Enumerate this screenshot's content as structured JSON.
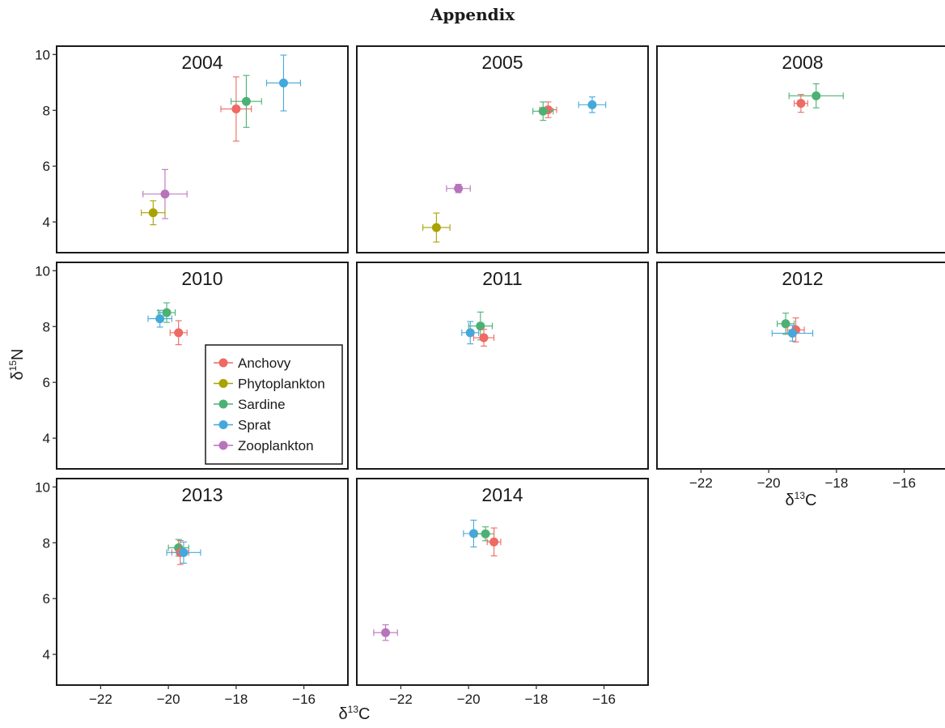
{
  "page": {
    "title": "Appendix"
  },
  "axes": {
    "xlabel_main": "δ",
    "xlabel_sup": "13",
    "xlabel_tail": "C",
    "ylabel_main": "δ",
    "ylabel_sup": "15",
    "ylabel_tail": "N"
  },
  "colors": {
    "Anchovy": "#ee6a62",
    "Phytoplankton": "#a8a300",
    "Sardine": "#4cb174",
    "Sprat": "#44a8dc",
    "Zooplankton": "#b774bb"
  },
  "chart_data": {
    "type": "scatter",
    "xlim": [
      -23.3,
      -14.7
    ],
    "ylim": [
      2.9,
      10.3
    ],
    "x_ticks": [
      -22,
      -20,
      -18,
      -16
    ],
    "y_ticks": [
      4,
      6,
      8,
      10
    ],
    "legend": {
      "placement": "inside panel 2010, bottom-right",
      "entries": [
        "Anchovy",
        "Phytoplankton",
        "Sardine",
        "Sprat",
        "Zooplankton"
      ]
    },
    "panels": [
      {
        "title": "2004",
        "points": [
          {
            "species": "Anchovy",
            "x": -18.0,
            "y": 8.05,
            "xerr": 0.45,
            "yerr": 1.15
          },
          {
            "species": "Sardine",
            "x": -17.7,
            "y": 8.32,
            "xerr": 0.45,
            "yerr": 0.93
          },
          {
            "species": "Sprat",
            "x": -16.6,
            "y": 8.98,
            "xerr": 0.5,
            "yerr": 1.0
          },
          {
            "species": "Zooplankton",
            "x": -20.1,
            "y": 5.0,
            "xerr": 0.65,
            "yerr": 0.88
          },
          {
            "species": "Phytoplankton",
            "x": -20.45,
            "y": 4.33,
            "xerr": 0.35,
            "yerr": 0.43
          }
        ]
      },
      {
        "title": "2005",
        "points": [
          {
            "species": "Anchovy",
            "x": -17.65,
            "y": 8.02,
            "xerr": 0.25,
            "yerr": 0.28
          },
          {
            "species": "Sardine",
            "x": -17.8,
            "y": 7.97,
            "xerr": 0.3,
            "yerr": 0.33
          },
          {
            "species": "Sprat",
            "x": -16.35,
            "y": 8.2,
            "xerr": 0.4,
            "yerr": 0.28
          },
          {
            "species": "Zooplankton",
            "x": -20.3,
            "y": 5.2,
            "xerr": 0.35,
            "yerr": 0.15
          },
          {
            "species": "Phytoplankton",
            "x": -20.95,
            "y": 3.8,
            "xerr": 0.4,
            "yerr": 0.52
          }
        ]
      },
      {
        "title": "2008",
        "points": [
          {
            "species": "Anchovy",
            "x": -19.05,
            "y": 8.25,
            "xerr": 0.2,
            "yerr": 0.32
          },
          {
            "species": "Sardine",
            "x": -18.6,
            "y": 8.52,
            "xerr": 0.8,
            "yerr": 0.43
          }
        ]
      },
      {
        "title": "2010",
        "points": [
          {
            "species": "Sprat",
            "x": -20.25,
            "y": 8.28,
            "xerr": 0.35,
            "yerr": 0.3
          },
          {
            "species": "Sardine",
            "x": -20.05,
            "y": 8.5,
            "xerr": 0.25,
            "yerr": 0.35
          },
          {
            "species": "Anchovy",
            "x": -19.7,
            "y": 7.78,
            "xerr": 0.25,
            "yerr": 0.43
          }
        ]
      },
      {
        "title": "2011",
        "points": [
          {
            "species": "Sprat",
            "x": -19.95,
            "y": 7.78,
            "xerr": 0.25,
            "yerr": 0.4
          },
          {
            "species": "Sardine",
            "x": -19.65,
            "y": 8.02,
            "xerr": 0.35,
            "yerr": 0.5
          },
          {
            "species": "Anchovy",
            "x": -19.55,
            "y": 7.6,
            "xerr": 0.3,
            "yerr": 0.3
          }
        ]
      },
      {
        "title": "2012",
        "points": [
          {
            "species": "Sardine",
            "x": -19.5,
            "y": 8.1,
            "xerr": 0.25,
            "yerr": 0.38
          },
          {
            "species": "Anchovy",
            "x": -19.2,
            "y": 7.88,
            "xerr": 0.25,
            "yerr": 0.43
          },
          {
            "species": "Sprat",
            "x": -19.3,
            "y": 7.76,
            "xerr": 0.6,
            "yerr": 0.28
          }
        ]
      },
      {
        "title": "2013",
        "points": [
          {
            "species": "Sardine",
            "x": -19.7,
            "y": 7.82,
            "xerr": 0.3,
            "yerr": 0.3
          },
          {
            "species": "Anchovy",
            "x": -19.65,
            "y": 7.65,
            "xerr": 0.25,
            "yerr": 0.43
          },
          {
            "species": "Sprat",
            "x": -19.55,
            "y": 7.65,
            "xerr": 0.5,
            "yerr": 0.38
          }
        ]
      },
      {
        "title": "2014",
        "points": [
          {
            "species": "Sprat",
            "x": -19.85,
            "y": 8.33,
            "xerr": 0.3,
            "yerr": 0.48
          },
          {
            "species": "Sardine",
            "x": -19.5,
            "y": 8.32,
            "xerr": 0.25,
            "yerr": 0.25
          },
          {
            "species": "Anchovy",
            "x": -19.25,
            "y": 8.03,
            "xerr": 0.2,
            "yerr": 0.5
          },
          {
            "species": "Zooplankton",
            "x": -22.45,
            "y": 4.78,
            "xerr": 0.35,
            "yerr": 0.28
          }
        ]
      }
    ]
  }
}
